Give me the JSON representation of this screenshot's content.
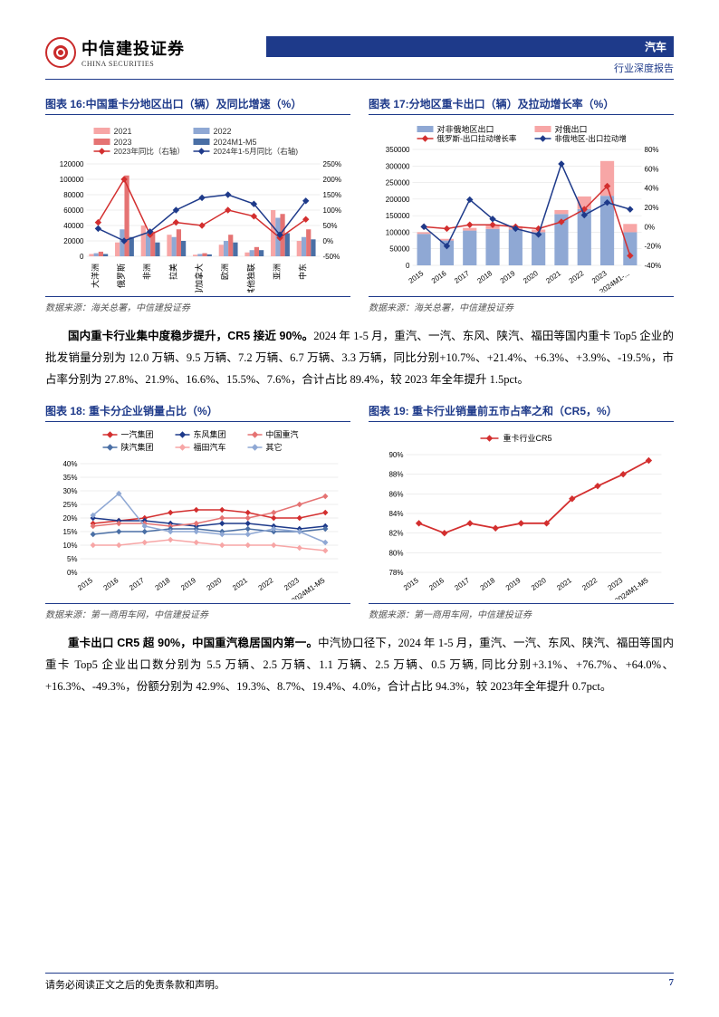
{
  "header": {
    "logo_cn": "中信建投证券",
    "logo_en": "CHINA SECURITIES",
    "sector": "汽车",
    "report_type": "行业深度报告"
  },
  "chart16": {
    "title": "图表 16:中国重卡分地区出口（辆）及同比增速（%）",
    "source": "数据来源：海关总署，中信建投证券",
    "legend": [
      "2021",
      "2022",
      "2023",
      "2024M1-M5",
      "2023年同比（右轴）",
      "2024年1-5月同比（右轴)"
    ],
    "legend_colors": [
      "#f7a6a6",
      "#8fa8d4",
      "#e57373",
      "#4a6fa5",
      "#d32f2f",
      "#1e3a8a"
    ],
    "yleft_ticks": [
      0,
      20000,
      40000,
      60000,
      80000,
      100000,
      120000
    ],
    "yright_ticks": [
      "-50%",
      "0%",
      "50%",
      "100%",
      "150%",
      "200%",
      "250%"
    ],
    "categories": [
      "大洋洲",
      "俄罗斯",
      "非洲",
      "拉美",
      "美国/加拿大",
      "欧洲",
      "其他独联",
      "亚洲",
      "中东"
    ],
    "bars_2021": [
      3000,
      18000,
      40000,
      28000,
      2000,
      15000,
      5000,
      60000,
      20000
    ],
    "bars_2022": [
      4000,
      35000,
      30000,
      25000,
      3000,
      20000,
      8000,
      50000,
      25000
    ],
    "bars_2023": [
      6000,
      105000,
      32000,
      35000,
      4000,
      28000,
      12000,
      55000,
      35000
    ],
    "bars_2024": [
      3000,
      25000,
      18000,
      20000,
      2500,
      18000,
      8000,
      30000,
      22000
    ],
    "line_2023": [
      60,
      200,
      20,
      60,
      50,
      100,
      80,
      10,
      70
    ],
    "line_2024": [
      40,
      0,
      30,
      100,
      140,
      150,
      120,
      20,
      130
    ]
  },
  "chart17": {
    "title": "图表 17:分地区重卡出口（辆）及拉动增长率（%）",
    "source": "数据来源：海关总署，中信建投证券",
    "legend": [
      "对非俄地区出口",
      "对俄出口",
      "俄罗斯-出口拉动增长率",
      "非俄地区-出口拉动增"
    ],
    "legend_colors": [
      "#8fa8d4",
      "#f7a6a6",
      "#d32f2f",
      "#1e3a8a"
    ],
    "yleft_ticks": [
      0,
      50000,
      100000,
      150000,
      200000,
      250000,
      300000,
      350000
    ],
    "yright_ticks": [
      "-40%",
      "-20%",
      "0%",
      "20%",
      "40%",
      "60%",
      "80%"
    ],
    "categories": [
      "2015",
      "2016",
      "2017",
      "2018",
      "2019",
      "2020",
      "2021",
      "2022",
      "2023",
      "2024M1-..."
    ],
    "bars_nonrussia": [
      95000,
      75000,
      105000,
      110000,
      108000,
      100000,
      155000,
      170000,
      210000,
      100000
    ],
    "bars_russia": [
      5000,
      5000,
      8000,
      10000,
      10000,
      8000,
      12000,
      38000,
      105000,
      25000
    ],
    "line_russia": [
      0,
      -2,
      2,
      2,
      0,
      -2,
      5,
      18,
      42,
      -30
    ],
    "line_nonrussia": [
      0,
      -20,
      28,
      8,
      -2,
      -8,
      65,
      12,
      25,
      18
    ]
  },
  "para1": {
    "bold": "国内重卡行业集中度稳步提升，CR5 接近 90%。",
    "text": "2024 年 1-5 月，重汽、一汽、东风、陕汽、福田等国内重卡 Top5 企业的批发销量分别为 12.0 万辆、9.5 万辆、7.2 万辆、6.7 万辆、3.3 万辆，同比分别+10.7%、+21.4%、+6.3%、+3.9%、-19.5%，市占率分别为 27.8%、21.9%、16.6%、15.5%、7.6%，合计占比 89.4%，较 2023 年全年提升 1.5pct。"
  },
  "chart18": {
    "title": "图表 18: 重卡分企业销量占比（%）",
    "source": "数据来源：第一商用车网，中信建投证券",
    "legend": [
      "一汽集团",
      "东风集团",
      "中国重汽",
      "陕汽集团",
      "福田汽车",
      "其它"
    ],
    "legend_colors": [
      "#d32f2f",
      "#1e3a8a",
      "#e57373",
      "#4a6fa5",
      "#f7a6a6",
      "#8fa8d4"
    ],
    "y_ticks": [
      "0%",
      "5%",
      "10%",
      "15%",
      "20%",
      "25%",
      "30%",
      "35%",
      "40%"
    ],
    "categories": [
      "2015",
      "2016",
      "2017",
      "2018",
      "2019",
      "2020",
      "2021",
      "2022",
      "2023",
      "2024M1-M5"
    ],
    "series": {
      "yiqi": [
        18,
        19,
        20,
        22,
        23,
        23,
        22,
        20,
        20,
        22
      ],
      "dongfeng": [
        20,
        19,
        19,
        18,
        17,
        18,
        18,
        17,
        16,
        17
      ],
      "zhongqi": [
        17,
        18,
        18,
        17,
        18,
        20,
        20,
        22,
        25,
        28
      ],
      "shanqi": [
        14,
        15,
        15,
        16,
        16,
        15,
        16,
        15,
        15,
        16
      ],
      "futian": [
        10,
        10,
        11,
        12,
        11,
        10,
        10,
        10,
        9,
        8
      ],
      "qita": [
        21,
        29,
        17,
        15,
        15,
        14,
        14,
        16,
        15,
        11
      ]
    }
  },
  "chart19": {
    "title": "图表 19: 重卡行业销量前五市占率之和（CR5，%）",
    "source": "数据来源：第一商用车网，中信建投证券",
    "legend": [
      "重卡行业CR5"
    ],
    "legend_colors": [
      "#d32f2f"
    ],
    "y_ticks": [
      "78%",
      "80%",
      "82%",
      "84%",
      "86%",
      "88%",
      "90%"
    ],
    "categories": [
      "2015",
      "2016",
      "2017",
      "2018",
      "2019",
      "2020",
      "2021",
      "2022",
      "2023",
      "2024M1-M5"
    ],
    "values": [
      83,
      82,
      83,
      82.5,
      83,
      83,
      85.5,
      86.8,
      88,
      89.4
    ]
  },
  "para2": {
    "bold": "重卡出口 CR5 超 90%，中国重汽稳居国内第一。",
    "text": "中汽协口径下，2024 年 1-5 月，重汽、一汽、东风、陕汽、福田等国内重卡 Top5 企业出口数分别为 5.5 万辆、2.5 万辆、1.1 万辆、2.5 万辆、0.5 万辆, 同比分别+3.1%、+76.7%、+64.0%、+16.3%、-49.3%，份额分别为 42.9%、19.3%、8.7%、19.4%、4.0%，合计占比 94.3%，较 2023年全年提升 0.7pct。"
  },
  "footer": {
    "disclaimer": "请务必阅读正文之后的免责条款和声明。",
    "page": "7"
  }
}
